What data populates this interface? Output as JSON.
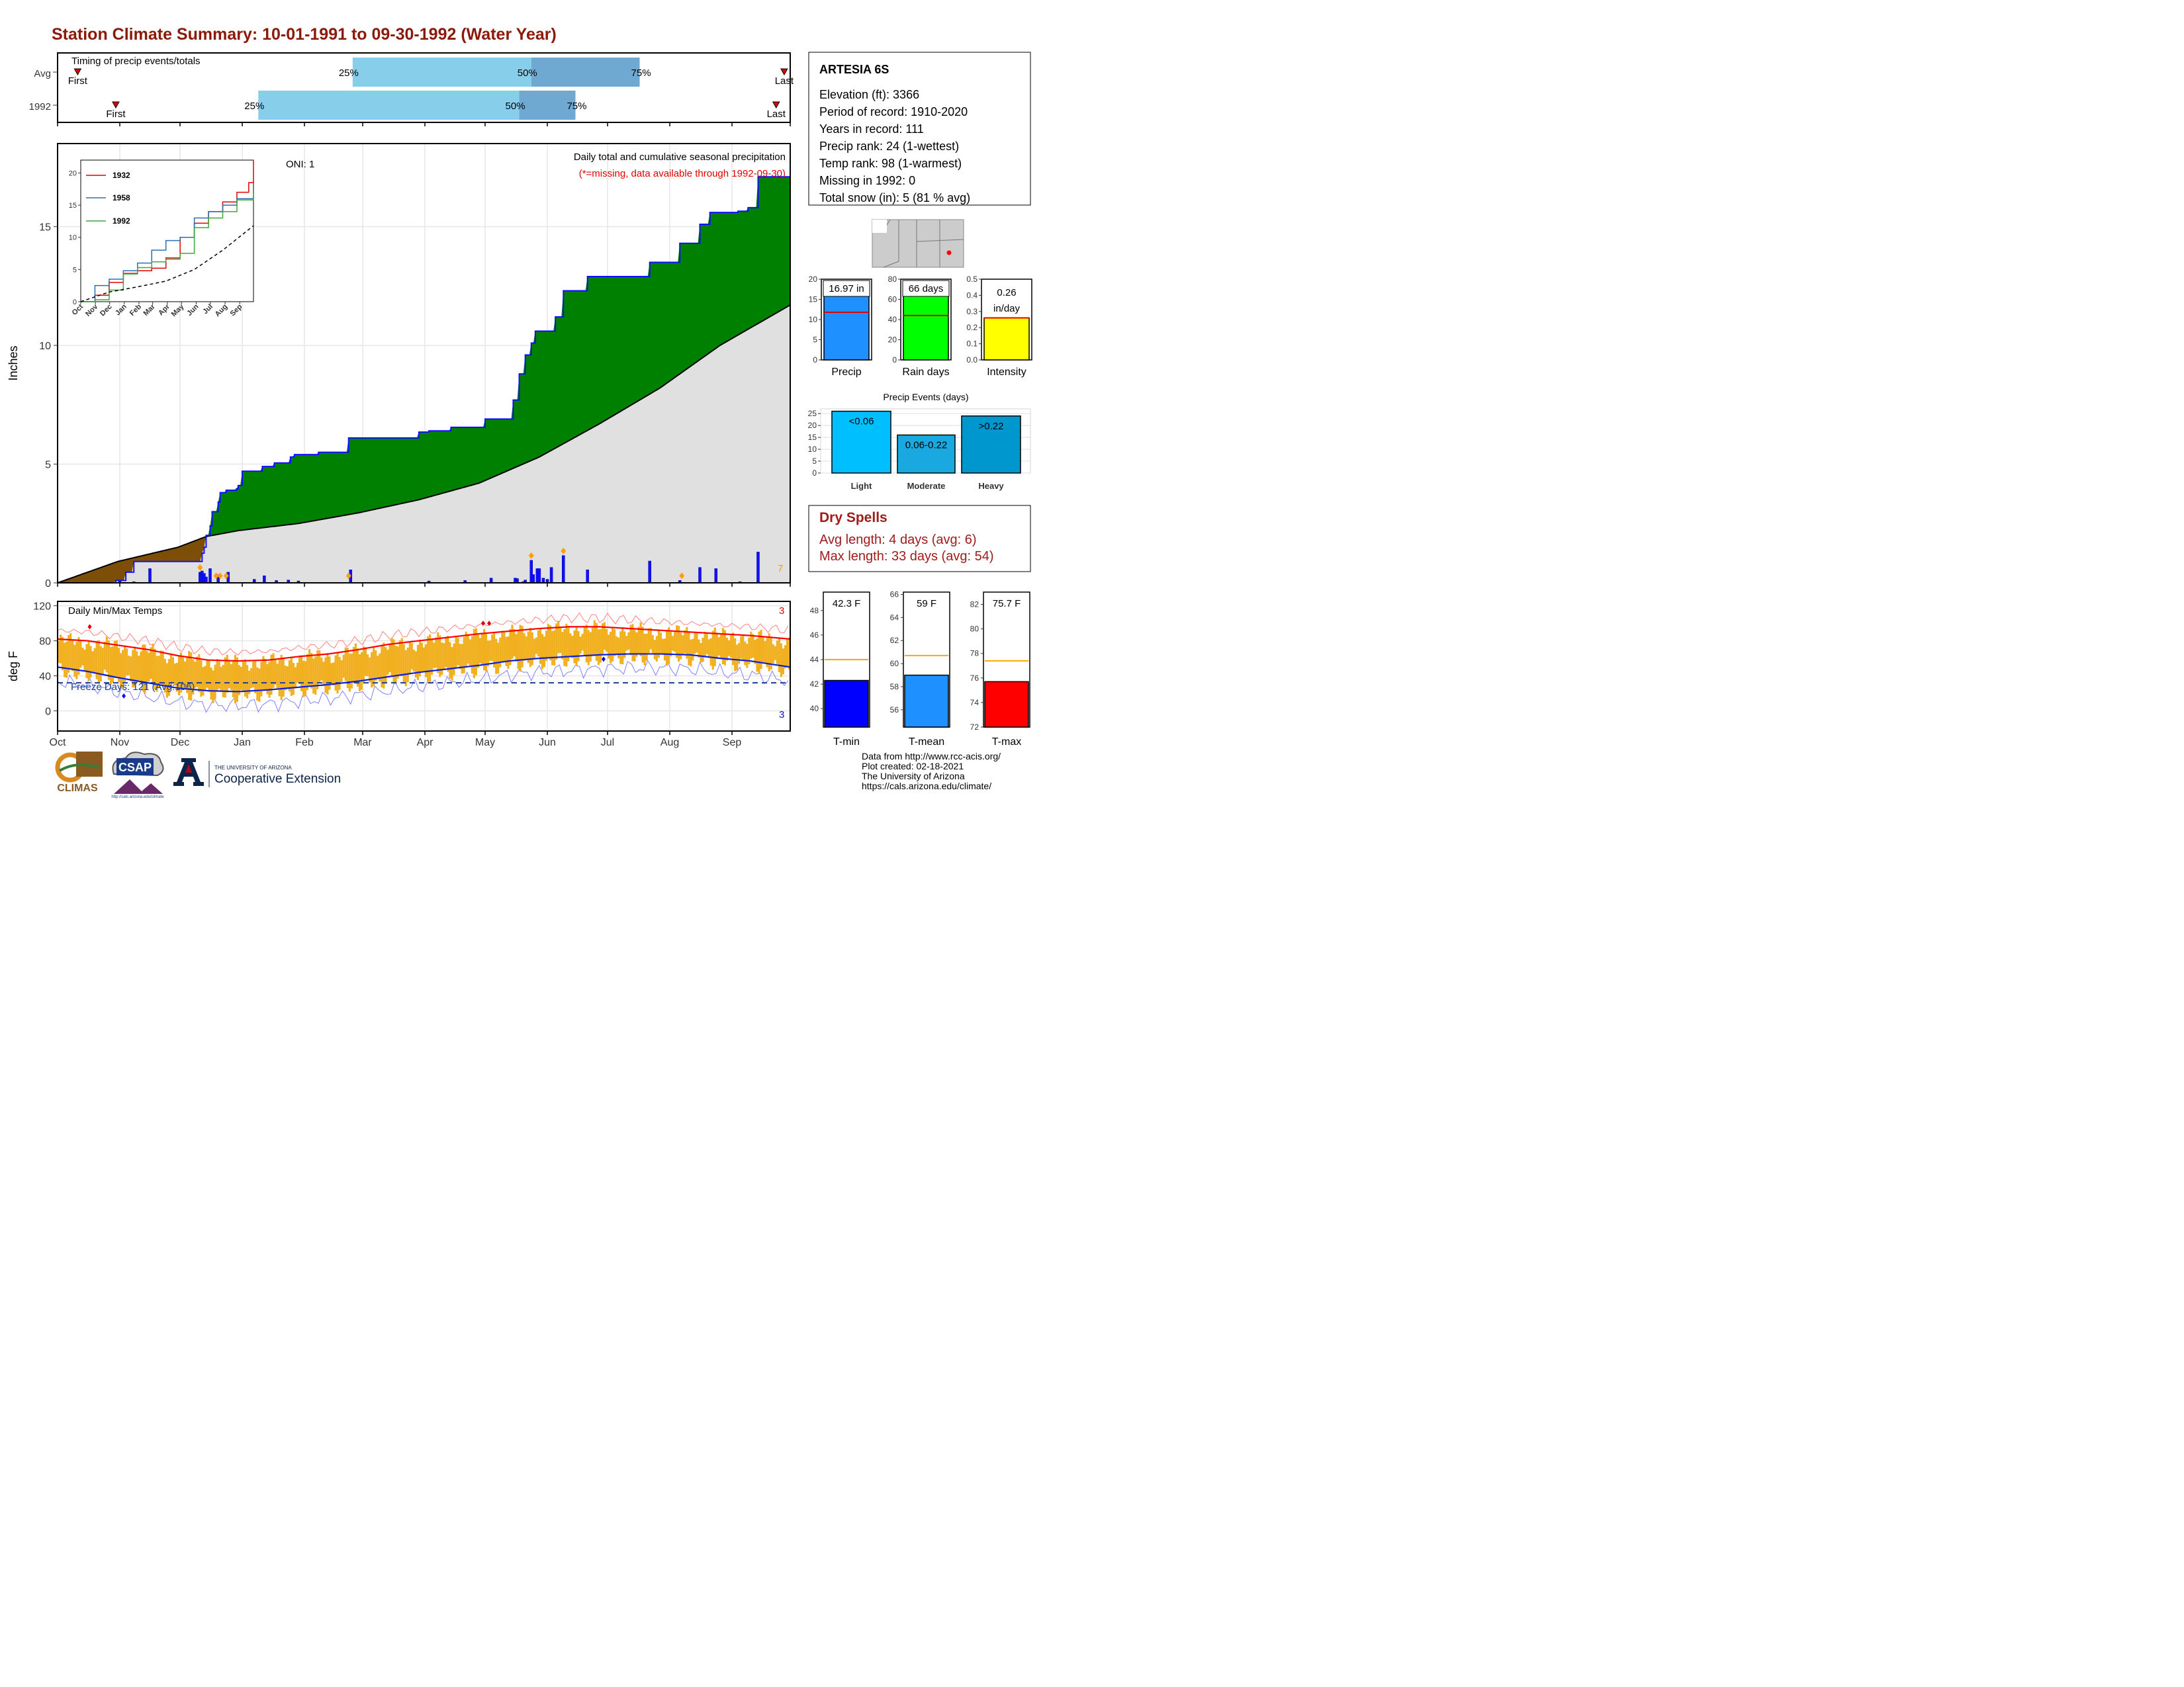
{
  "page_title": "Station Climate Summary: 10-01-1991 to 09-30-1992 (Water Year)",
  "colors": {
    "title": "#8b1a0a",
    "cumulative_fill": "#008000",
    "cumulative_line": "#1010ff",
    "avg_fill": "#e0e0e0",
    "deficit_fill": "#7d4e08",
    "temp_bars": "#f0b020",
    "tmax_line": "#ff0000",
    "tmin_line": "#1020d0",
    "light_blue": "#87ceeb",
    "mid_blue": "#6fa8d0",
    "dry_spell_text": "#a01c1c"
  },
  "timing": {
    "label": "Timing of precip events/totals",
    "rows": [
      {
        "name": "Avg",
        "first": "First",
        "last": "Last",
        "p25": "25%",
        "p50": "50%",
        "p75": "75%",
        "first_day": 10,
        "last_day": 362,
        "p25_day": 147,
        "p50_day": 236,
        "p75_day": 290
      },
      {
        "name": "1992",
        "first": "First",
        "last": "Last",
        "p25": "25%",
        "p50": "50%",
        "p75": "75%",
        "first_day": 29,
        "last_day": 358,
        "p25_day": 100,
        "p50_day": 230,
        "p75_day": 258
      }
    ]
  },
  "precip_panel": {
    "y_label": "Inches",
    "oni": "ONI: 1",
    "subtitle": "Daily total and cumulative seasonal precipitation",
    "missing_note": "(*=missing, data available through 1992-09-30)",
    "count_label": "7",
    "y_ticks": [
      "0",
      "5",
      "10",
      "15"
    ]
  },
  "inset": {
    "legend": [
      "1932",
      "1958",
      "1992"
    ],
    "y_ticks": [
      "0",
      "5",
      "10",
      "15",
      "20"
    ],
    "x_ticks": [
      "Oct",
      "Nov",
      "Dec",
      "Jan",
      "Feb",
      "Mar",
      "Apr",
      "May",
      "Jun",
      "Jul",
      "Aug",
      "Sep"
    ]
  },
  "temp_panel": {
    "title": "Daily Min/Max Temps",
    "y_label": "deg F",
    "freeze_days": "Freeze Days: 121 (Avg:106)",
    "record_high_count": "3",
    "record_low_count": "3",
    "y_ticks": [
      "0",
      "40",
      "80",
      "120"
    ],
    "x_ticks": [
      "Oct",
      "Nov",
      "Dec",
      "Jan",
      "Feb",
      "Mar",
      "Apr",
      "May",
      "Jun",
      "Jul",
      "Aug",
      "Sep"
    ]
  },
  "station": {
    "name": "ARTESIA 6S",
    "lines": [
      "Elevation (ft): 3366",
      "Period of record: 1910-2020",
      "Years in record: 111",
      "Precip rank: 24 (1-wettest)",
      "Temp rank: 98 (1-warmest)",
      "Missing in 1992: 0",
      "Total snow (in): 5 (81 % avg)"
    ]
  },
  "summary_bars": [
    {
      "name": "Precip",
      "value": 16.97,
      "value_label": "16.97 in",
      "avg": 11.8,
      "ymax": 20,
      "ticks": [
        "0",
        "5",
        "10",
        "15",
        "20"
      ],
      "color": "#1e90ff"
    },
    {
      "name": "Rain days",
      "value": 66,
      "value_label": "66 days",
      "avg": 44,
      "ymax": 80,
      "ticks": [
        "0",
        "20",
        "40",
        "60",
        "80"
      ],
      "color": "#00ff00"
    },
    {
      "name": "Intensity",
      "value": 0.26,
      "value_label": "0.26 in/day",
      "avg": 0.26,
      "ymax": 0.5,
      "ticks": [
        "0.0",
        "0.1",
        "0.2",
        "0.3",
        "0.4",
        "0.5"
      ],
      "color": "#ffff00"
    }
  ],
  "precip_events": {
    "title": "Precip Events (days)",
    "categories": [
      "Light",
      "Moderate",
      "Heavy"
    ],
    "labels": [
      "<0.06",
      "0.06-0.22",
      ">0.22"
    ],
    "values": [
      26,
      16,
      24
    ],
    "y_ticks": [
      "0",
      "5",
      "10",
      "15",
      "20",
      "25"
    ],
    "colors": [
      "#00bfff",
      "#1aa8e0",
      "#0097cf"
    ]
  },
  "dry_spells": {
    "title": "Dry Spells",
    "avg": "Avg length: 4 days (avg: 6)",
    "max": "Max length: 33 days (avg: 54)"
  },
  "temp_bars": [
    {
      "name": "T-min",
      "value": 42.3,
      "value_label": "42.3 F",
      "avg": 44.0,
      "ymin": 38.5,
      "ymax": 49.5,
      "ticks": [
        "40",
        "42",
        "44",
        "46",
        "48"
      ],
      "color": "#0000ff"
    },
    {
      "name": "T-mean",
      "value": 59,
      "value_label": "59 F",
      "avg": 60.7,
      "ymin": 54.5,
      "ymax": 66.2,
      "ticks": [
        "56",
        "58",
        "60",
        "62",
        "64",
        "66"
      ],
      "color": "#1e90ff"
    },
    {
      "name": "T-max",
      "value": 75.7,
      "value_label": "75.7 F",
      "avg": 77.4,
      "ymin": 72,
      "ymax": 83,
      "ticks": [
        "72",
        "74",
        "76",
        "78",
        "80",
        "82"
      ],
      "color": "#ff0000"
    }
  ],
  "footer": {
    "credits": [
      "Data from http://www.rcc-acis.org/",
      "Plot created: 02-18-2021",
      "The University of Arizona",
      "https://cals.arizona.edu/climate/"
    ],
    "logo_climas": "CLIMAS",
    "logo_csap": "CSAP",
    "logo_csap_url": "http://cals.arizona.edu/climate",
    "ua_small": "THE UNIVERSITY OF ARIZONA",
    "ua_big": "Cooperative Extension"
  },
  "chart_data": [
    {
      "type": "area",
      "title": "Daily total and cumulative seasonal precipitation",
      "ylabel": "Inches",
      "ylim": [
        0,
        18.5
      ],
      "x_unit": "day of water year (0 = Oct 1)",
      "cumulative_1992": [
        [
          0,
          0
        ],
        [
          29,
          0.1
        ],
        [
          34,
          0.45
        ],
        [
          38,
          0.9
        ],
        [
          71,
          0.9
        ],
        [
          72,
          1.25
        ],
        [
          73,
          1.5
        ],
        [
          74,
          2.0
        ],
        [
          76,
          2.4
        ],
        [
          77,
          3.0
        ],
        [
          80,
          3.4
        ],
        [
          81,
          3.8
        ],
        [
          84,
          3.9
        ],
        [
          89,
          3.95
        ],
        [
          90,
          4.1
        ],
        [
          92,
          4.7
        ],
        [
          102,
          4.9
        ],
        [
          108,
          5.05
        ],
        [
          116,
          5.3
        ],
        [
          118,
          5.4
        ],
        [
          130,
          5.5
        ],
        [
          145,
          6.1
        ],
        [
          180,
          6.35
        ],
        [
          185,
          6.4
        ],
        [
          196,
          6.55
        ],
        [
          213,
          6.9
        ],
        [
          227,
          7.7
        ],
        [
          230,
          8.8
        ],
        [
          233,
          9.6
        ],
        [
          236,
          10.1
        ],
        [
          238,
          10.6
        ],
        [
          248,
          11.2
        ],
        [
          252,
          12.3
        ],
        [
          264,
          12.9
        ],
        [
          295,
          13.5
        ],
        [
          310,
          14.3
        ],
        [
          320,
          15.1
        ],
        [
          325,
          15.6
        ],
        [
          339,
          15.65
        ],
        [
          344,
          15.8
        ],
        [
          349,
          17.1
        ],
        [
          365,
          17.1
        ]
      ],
      "average_cumulative": [
        [
          0,
          0
        ],
        [
          30,
          0.9
        ],
        [
          60,
          1.5
        ],
        [
          74,
          1.95
        ],
        [
          90,
          2.2
        ],
        [
          120,
          2.5
        ],
        [
          150,
          2.95
        ],
        [
          180,
          3.5
        ],
        [
          210,
          4.2
        ],
        [
          240,
          5.3
        ],
        [
          270,
          6.7
        ],
        [
          300,
          8.2
        ],
        [
          330,
          10.0
        ],
        [
          365,
          11.7
        ]
      ],
      "daily_precip": [
        [
          31,
          0.08
        ],
        [
          34,
          0.02
        ],
        [
          38,
          0.05
        ],
        [
          46,
          0.6
        ],
        [
          71,
          0.45
        ],
        [
          72,
          0.5
        ],
        [
          73,
          0.4
        ],
        [
          74,
          0.25
        ],
        [
          76,
          0.6
        ],
        [
          80,
          0.35
        ],
        [
          85,
          0.45
        ],
        [
          98,
          0.15
        ],
        [
          103,
          0.3
        ],
        [
          109,
          0.1
        ],
        [
          115,
          0.12
        ],
        [
          120,
          0.08
        ],
        [
          146,
          0.55
        ],
        [
          185,
          0.08
        ],
        [
          203,
          0.1
        ],
        [
          216,
          0.2
        ],
        [
          232,
          0.05
        ],
        [
          228,
          0.2
        ],
        [
          229,
          0.18
        ],
        [
          233,
          0.12
        ],
        [
          236,
          0.95
        ],
        [
          237,
          0.35
        ],
        [
          239,
          0.6
        ],
        [
          240,
          0.6
        ],
        [
          242,
          0.2
        ],
        [
          244,
          0.15
        ],
        [
          246,
          0.65
        ],
        [
          252,
          1.15
        ],
        [
          264,
          0.55
        ],
        [
          295,
          0.92
        ],
        [
          310,
          0.1
        ],
        [
          320,
          0.65
        ],
        [
          328,
          0.6
        ],
        [
          340,
          0.05
        ],
        [
          349,
          1.3
        ]
      ],
      "record_markers_days": [
        71,
        79,
        81,
        84,
        145,
        236,
        252,
        311
      ]
    },
    {
      "type": "line",
      "title": "",
      "xlabel": "",
      "ylim": [
        0,
        22
      ],
      "series": [
        {
          "name": "1932",
          "values": [
            [
              0,
              0
            ],
            [
              30,
              1.0
            ],
            [
              60,
              3.0
            ],
            [
              90,
              4.4
            ],
            [
              120,
              4.8
            ],
            [
              150,
              5.2
            ],
            [
              180,
              6.8
            ],
            [
              210,
              10.0
            ],
            [
              240,
              12.2
            ],
            [
              270,
              14.0
            ],
            [
              300,
              15.5
            ],
            [
              330,
              17.0
            ],
            [
              355,
              18.5
            ],
            [
              365,
              22.0
            ]
          ]
        },
        {
          "name": "1958",
          "values": [
            [
              0,
              0
            ],
            [
              30,
              2.5
            ],
            [
              60,
              3.5
            ],
            [
              90,
              4.8
            ],
            [
              120,
              6.0
            ],
            [
              150,
              8.0
            ],
            [
              180,
              9.5
            ],
            [
              210,
              10.0
            ],
            [
              240,
              13.0
            ],
            [
              270,
              14.0
            ],
            [
              300,
              15.0
            ],
            [
              330,
              16.0
            ],
            [
              365,
              17.0
            ]
          ]
        },
        {
          "name": "1992",
          "values": [
            [
              0,
              0
            ],
            [
              30,
              0.3
            ],
            [
              60,
              1.8
            ],
            [
              90,
              4.3
            ],
            [
              120,
              5.3
            ],
            [
              150,
              6.2
            ],
            [
              180,
              6.6
            ],
            [
              210,
              7.5
            ],
            [
              240,
              11.5
            ],
            [
              270,
              13.0
            ],
            [
              300,
              14.0
            ],
            [
              330,
              15.8
            ],
            [
              365,
              17.0
            ]
          ]
        }
      ],
      "average": [
        [
          0,
          0
        ],
        [
          60,
          1.5
        ],
        [
          120,
          2.3
        ],
        [
          180,
          3.2
        ],
        [
          240,
          5.0
        ],
        [
          300,
          8.0
        ],
        [
          365,
          11.8
        ]
      ]
    },
    {
      "type": "bar",
      "title": "Daily Min/Max Temps",
      "ylabel": "deg F",
      "ylim": [
        -20,
        120
      ],
      "avg_max": [
        [
          0,
          82
        ],
        [
          15,
          80
        ],
        [
          30,
          75
        ],
        [
          45,
          70
        ],
        [
          60,
          63
        ],
        [
          75,
          58
        ],
        [
          90,
          57
        ],
        [
          105,
          58
        ],
        [
          120,
          62
        ],
        [
          135,
          65
        ],
        [
          150,
          70
        ],
        [
          165,
          76
        ],
        [
          180,
          80
        ],
        [
          195,
          84
        ],
        [
          210,
          88
        ],
        [
          225,
          91
        ],
        [
          240,
          94
        ],
        [
          255,
          96
        ],
        [
          270,
          96
        ],
        [
          285,
          94
        ],
        [
          300,
          92
        ],
        [
          315,
          90
        ],
        [
          330,
          88
        ],
        [
          345,
          86
        ],
        [
          365,
          82
        ]
      ],
      "avg_min": [
        [
          0,
          50
        ],
        [
          15,
          45
        ],
        [
          30,
          38
        ],
        [
          45,
          32
        ],
        [
          60,
          26
        ],
        [
          75,
          23
        ],
        [
          90,
          22
        ],
        [
          105,
          24
        ],
        [
          120,
          27
        ],
        [
          135,
          30
        ],
        [
          150,
          34
        ],
        [
          165,
          39
        ],
        [
          180,
          44
        ],
        [
          195,
          48
        ],
        [
          210,
          52
        ],
        [
          225,
          57
        ],
        [
          240,
          60
        ],
        [
          255,
          62
        ],
        [
          270,
          64
        ],
        [
          285,
          65
        ],
        [
          300,
          65
        ],
        [
          315,
          64
        ],
        [
          330,
          60
        ],
        [
          345,
          57
        ],
        [
          365,
          50
        ]
      ]
    }
  ]
}
